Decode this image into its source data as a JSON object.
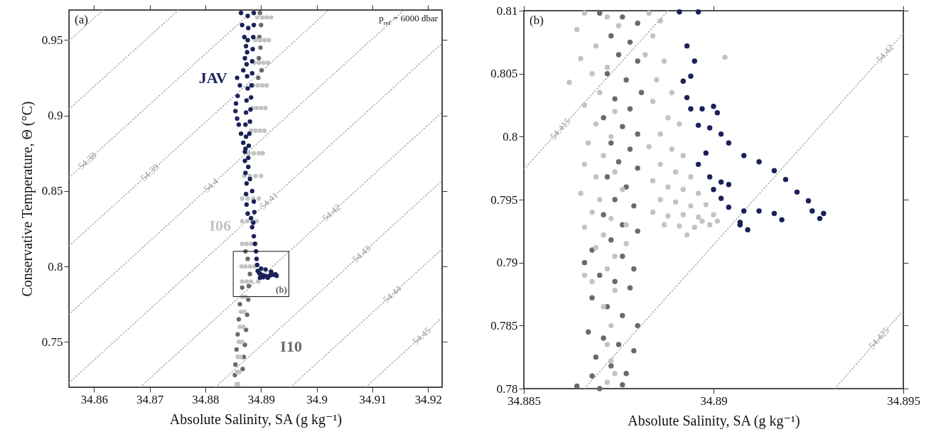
{
  "chart_data": [
    {
      "type": "scatter",
      "xlabel": "Absolute Salinity, SA (g kg⁻¹)",
      "ylabel": "Conservative Temperature, Θ (°C)",
      "xlim": [
        34.8555,
        34.9225
      ],
      "ylim": [
        0.72,
        0.97
      ],
      "xticks": [
        34.86,
        34.87,
        34.88,
        34.89,
        34.9,
        34.91,
        34.92
      ],
      "yticks": [
        0.75,
        0.8,
        0.85,
        0.9,
        0.95
      ],
      "annotations": [
        "(a)",
        "p$_{ref}$ = 6000 dbar",
        "(b)"
      ],
      "series": [
        {
          "type": "line",
          "line_style": "dotted",
          "color": "#9a9a9a",
          "x": [
            34.8555,
            34.8617
          ],
          "values": [
            0.9496,
            0.97
          ]
        },
        {
          "type": "line",
          "line_style": "dotted",
          "color": "#9a9a9a",
          "x": [
            34.8555,
            34.8752
          ],
          "values": [
            0.9042,
            0.97
          ]
        },
        {
          "type": "line",
          "name": "54.38",
          "line_style": "dotted",
          "color": "#9a9a9a",
          "x": [
            34.8555,
            34.8887
          ],
          "values": [
            0.8588,
            0.97
          ]
        },
        {
          "type": "line",
          "name": "54.39",
          "line_style": "dotted",
          "color": "#9a9a9a",
          "x": [
            34.8555,
            34.9022
          ],
          "values": [
            0.8135,
            0.97
          ]
        },
        {
          "type": "line",
          "name": "54.4",
          "line_style": "dotted",
          "color": "#9a9a9a",
          "x": [
            34.8555,
            34.9157
          ],
          "values": [
            0.7681,
            0.97
          ]
        },
        {
          "type": "line",
          "name": "54.41",
          "line_style": "dotted",
          "color": "#9a9a9a",
          "x": [
            34.8555,
            34.9225
          ],
          "values": [
            0.7228,
            0.9479
          ]
        },
        {
          "type": "line",
          "name": "54.42",
          "line_style": "dotted",
          "color": "#9a9a9a",
          "x": [
            34.8683,
            34.9225
          ],
          "values": [
            0.72,
            0.9022
          ]
        },
        {
          "type": "line",
          "name": "54.43",
          "line_style": "dotted",
          "color": "#9a9a9a",
          "x": [
            34.8818,
            34.9225
          ],
          "values": [
            0.72,
            0.8568
          ]
        },
        {
          "type": "line",
          "name": "54.44",
          "line_style": "dotted",
          "color": "#9a9a9a",
          "x": [
            34.8953,
            34.9225
          ],
          "values": [
            0.72,
            0.8115
          ]
        },
        {
          "type": "line",
          "name": "54.45",
          "line_style": "dotted",
          "color": "#9a9a9a",
          "x": [
            34.9088,
            34.9225
          ],
          "values": [
            0.72,
            0.7661
          ]
        },
        {
          "name": "I10",
          "marker": "circle",
          "color": "#6a6a6a",
          "x": [
            34.8871,
            34.8898,
            34.89,
            34.8897,
            34.8899,
            34.8896,
            34.8901,
            34.8895,
            34.8866,
            34.8862,
            34.886,
            34.8858,
            34.8856,
            34.8854,
            34.8853,
            34.8878,
            34.8877,
            34.8875,
            34.8873,
            34.8869,
            34.8867,
            34.887,
            34.8876,
            34.888,
            34.8872
          ],
          "values": [
            0.748,
            0.968,
            0.96,
            0.952,
            0.945,
            0.938,
            0.93,
            0.925,
            0.786,
            0.775,
            0.765,
            0.755,
            0.745,
            0.735,
            0.728,
            0.787,
            0.778,
            0.768,
            0.758,
            0.74,
            0.732,
            null,
            0.805,
            0.795,
            0.81
          ]
        },
        {
          "name": "I06",
          "marker": "circle",
          "color": "#c3c3c3",
          "x": [
            34.8866,
            34.8893,
            34.8902,
            34.891,
            34.8918,
            34.889,
            34.8898,
            34.8906,
            34.8914,
            34.8888,
            34.8896,
            34.8904,
            34.8912,
            34.8886,
            34.8894,
            34.8902,
            34.891,
            34.8884,
            34.8892,
            34.89,
            34.8908,
            34.8882,
            34.889,
            34.8898,
            34.8906,
            34.8878,
            34.8887,
            34.8896,
            34.8903,
            34.887,
            34.888,
            34.889,
            34.89,
            34.8866,
            34.8876,
            34.8886,
            34.8896,
            34.8875,
            34.8884,
            34.8892,
            34.8866,
            34.8874,
            34.8882,
            34.889,
            34.8865,
            34.8872,
            34.888,
            34.8888,
            34.8866,
            34.8874,
            34.8882,
            34.8895,
            34.8866,
            34.8872,
            34.8864,
            34.887,
            34.8862,
            34.8868,
            34.886,
            34.8866,
            34.8858,
            34.8863,
            34.8857,
            34.8861,
            34.8856,
            34.8859
          ],
          "values": [
            0.83,
            0.965,
            0.965,
            0.965,
            0.965,
            0.95,
            0.95,
            0.95,
            0.95,
            0.935,
            0.935,
            0.935,
            0.935,
            0.92,
            0.92,
            0.92,
            0.92,
            0.905,
            0.905,
            0.905,
            0.905,
            0.89,
            0.89,
            0.89,
            0.89,
            0.875,
            0.875,
            0.875,
            0.875,
            0.86,
            0.86,
            0.86,
            0.86,
            0.845,
            0.845,
            0.845,
            0.845,
            0.83,
            0.83,
            0.83,
            0.815,
            0.815,
            0.815,
            0.815,
            0.8,
            0.8,
            0.8,
            0.8,
            0.79,
            0.79,
            0.79,
            0.79,
            0.78,
            0.78,
            0.77,
            0.77,
            0.76,
            0.76,
            0.75,
            0.75,
            0.74,
            0.74,
            0.73,
            0.73,
            0.722,
            0.722
          ]
        },
        {
          "name": "JAV",
          "marker": "circle",
          "color": "#1a2259",
          "x": [
            34.8857,
            34.8864,
            34.8866,
            34.887,
            34.8873,
            34.8871,
            34.8868,
            34.8862,
            34.8858,
            34.8855,
            34.8854,
            34.8857,
            34.886,
            34.8864,
            34.8868,
            34.8871,
            34.8876,
            34.8877,
            34.8876,
            34.8875,
            34.8874,
            34.8875,
            34.8876,
            34.8874,
            34.8873,
            34.8872,
            34.8873,
            34.8872,
            34.8871,
            34.8872,
            34.8874,
            34.8873,
            34.8874,
            34.8876,
            34.8887,
            34.8887,
            34.8886,
            34.8885,
            34.8884,
            34.8884,
            34.8883,
            34.8882,
            34.8881,
            34.888,
            34.8879,
            34.8878,
            34.8877,
            34.8877,
            34.888,
            34.8884,
            34.8887,
            34.8888,
            34.8886,
            34.8882,
            34.8884,
            34.8887,
            34.8889,
            34.8891,
            34.8892,
            34.8893,
            34.8894,
            34.8897,
            34.8901,
            34.8905,
            34.891,
            34.8916,
            34.8922,
            34.8928,
            34.8912,
            34.8904,
            34.8898,
            34.89,
            34.8908,
            34.8918,
            34.8926
          ],
          "values": [
            0.925,
            0.968,
            0.96,
            0.952,
            0.946,
            0.938,
            0.93,
            0.92,
            0.913,
            0.908,
            0.903,
            0.898,
            0.894,
            0.888,
            0.882,
            0.876,
            0.966,
            0.958,
            0.95,
            0.942,
            0.934,
            0.926,
            0.918,
            0.91,
            0.902,
            0.894,
            0.886,
            0.878,
            0.87,
            0.862,
            0.855,
            0.848,
            0.841,
            0.835,
            0.968,
            0.96,
            0.952,
            0.944,
            0.936,
            0.928,
            0.92,
            0.912,
            0.904,
            0.896,
            0.888,
            0.88,
            0.872,
            0.866,
            0.858,
            0.85,
            0.843,
            0.836,
            0.829,
            0.832,
            0.826,
            0.82,
            0.815,
            0.81,
            0.805,
            0.801,
            0.797,
            0.7955,
            0.7945,
            0.794,
            0.7935,
            0.794,
            0.7945,
            0.7938,
            0.7925,
            0.7928,
            0.7925,
            0.7985,
            0.798,
            0.7965,
            0.7948
          ]
        }
      ]
    },
    {
      "type": "scatter",
      "xlabel": "Absolute Salinity, SA (g kg⁻¹)",
      "xlim": [
        34.885,
        34.895
      ],
      "ylim": [
        0.78,
        0.81
      ],
      "xticks": [
        34.885,
        34.89,
        34.895
      ],
      "yticks": [
        0.78,
        0.785,
        0.79,
        0.795,
        0.8,
        0.805,
        0.81
      ],
      "annotations": [
        "(b)"
      ],
      "series": [
        {
          "type": "line",
          "name": "54.415",
          "line_style": "dotted",
          "color": "#9a9a9a",
          "x": [
            34.885,
            34.8888
          ],
          "values": [
            0.7974,
            0.81
          ]
        },
        {
          "type": "line",
          "name": "54.42",
          "line_style": "dotted",
          "color": "#9a9a9a",
          "x": [
            34.8866,
            34.895
          ],
          "values": [
            0.78,
            0.8082
          ]
        },
        {
          "type": "line",
          "name": "54.425",
          "line_style": "dotted",
          "color": "#9a9a9a",
          "x": [
            34.8932,
            34.895
          ],
          "values": [
            0.78,
            0.7862
          ]
        },
        {
          "marker": "circle",
          "color": "#6a6a6a",
          "x": [
            34.887,
            34.8876,
            34.888,
            34.8873,
            34.8878,
            34.8875,
            34.888,
            34.8872,
            34.8877,
            34.8881,
            34.8874,
            34.8878,
            34.8871,
            34.8876,
            34.888,
            34.8873,
            34.8878,
            34.8875,
            34.888,
            34.8872,
            34.8877,
            34.8874,
            34.8879,
            34.8871,
            34.8876,
            34.888,
            34.8873,
            34.8868,
            34.8876,
            34.8879,
            34.8866,
            34.887,
            34.8874,
            34.8878,
            34.8868,
            34.8872,
            34.8876,
            34.888,
            34.8867,
            34.8871,
            34.8875,
            34.8879,
            34.8869,
            34.8873,
            34.8877,
            34.8868,
            34.8872,
            34.8876,
            34.8864,
            34.887
          ],
          "values": [
            0.8098,
            0.8095,
            0.809,
            0.808,
            0.8075,
            0.8065,
            0.806,
            0.805,
            0.8045,
            0.8035,
            0.803,
            0.8022,
            0.8015,
            0.8008,
            0.8002,
            0.7995,
            0.799,
            0.798,
            0.7975,
            0.7968,
            0.796,
            0.795,
            0.7945,
            0.7938,
            0.793,
            0.7925,
            0.7918,
            0.791,
            0.7905,
            0.7895,
            0.79,
            0.789,
            0.7885,
            0.788,
            0.7872,
            0.7865,
            0.7858,
            0.785,
            0.7845,
            0.784,
            0.7835,
            0.783,
            0.7825,
            0.7818,
            0.7812,
            0.781,
            null,
            0.7803,
            0.7802,
            0.78
          ]
        },
        {
          "marker": "circle",
          "color": "#c3c3c3",
          "x": [
            34.8864,
            34.8866,
            34.8869,
            34.8872,
            34.8875,
            34.8865,
            34.8868,
            34.8872,
            34.887,
            34.8866,
            34.8874,
            34.8869,
            34.8867,
            34.8873,
            34.8871,
            34.8866,
            34.8869,
            34.8874,
            34.8865,
            34.887,
            34.8876,
            34.8868,
            34.8873,
            34.8866,
            34.8871,
            34.8877,
            34.8869,
            34.8874,
            34.8872,
            34.8868,
            34.8874,
            34.8871,
            34.8873,
            34.8872,
            34.8873,
            34.8872,
            34.8874,
            34.8866,
            34.8877,
            34.8862,
            34.8883,
            34.8886,
            34.8884,
            34.8882,
            34.8887,
            34.8885,
            34.8889,
            34.8884,
            34.8888,
            34.8891,
            34.8886,
            34.8883,
            34.8889,
            34.8892,
            34.8886,
            34.889,
            34.8894,
            34.8884,
            34.8888,
            34.8892,
            34.8896,
            34.8886,
            34.889,
            34.8894,
            34.8898,
            34.8884,
            34.8888,
            34.8892,
            34.8896,
            34.89,
            34.8887,
            34.8891,
            34.8895,
            34.8899,
            34.8893,
            34.8897,
            34.8901,
            34.8903
          ],
          "values": [
            0.8085,
            0.8098,
            0.8072,
            0.8095,
            0.8088,
            0.8062,
            0.805,
            0.8055,
            0.8035,
            0.8025,
            0.802,
            0.801,
            0.7995,
            0.8,
            0.7985,
            0.7978,
            0.7968,
            0.7972,
            0.7955,
            0.795,
            0.7958,
            0.794,
            0.7935,
            0.7928,
            0.7922,
            0.793,
            0.7912,
            0.7905,
            0.7895,
            0.7885,
            0.7878,
            0.7865,
            0.785,
            0.7835,
            0.7822,
            0.7805,
            0.7812,
            0.789,
            0.7915,
            0.8043,
            0.8098,
            0.8092,
            0.808,
            0.8065,
            0.806,
            0.8045,
            0.8035,
            0.8028,
            0.8015,
            0.801,
            0.8002,
            0.7992,
            0.799,
            0.7985,
            0.7978,
            0.7972,
            0.7968,
            0.7965,
            0.796,
            0.7958,
            0.7955,
            0.795,
            0.7948,
            0.7945,
            0.7946,
            0.794,
            0.7937,
            0.7938,
            0.7936,
            0.7938,
            0.793,
            0.7929,
            0.7928,
            0.793,
            0.7922,
            0.7933,
            0.7933,
            0.8063
          ]
        },
        {
          "marker": "circle",
          "color": "#1a2259",
          "x": [
            34.8891,
            34.8896,
            34.8893,
            34.8895,
            34.8894,
            34.8892,
            34.8893,
            34.8894,
            34.8897,
            34.89,
            34.8901,
            34.8896,
            34.8899,
            34.8902,
            34.8904,
            34.8908,
            34.8912,
            34.8916,
            34.8919,
            34.8922,
            34.8925,
            34.8926,
            34.8929,
            34.8928,
            34.8898,
            34.8896,
            34.8899,
            34.89,
            34.8902,
            34.8904,
            34.8908,
            34.8912,
            34.8916,
            34.8918,
            34.8907,
            34.8907,
            34.8909,
            34.8902,
            34.8904
          ],
          "values": [
            0.8099,
            0.8099,
            0.8072,
            0.806,
            0.8048,
            0.8044,
            0.8031,
            0.8022,
            0.8022,
            0.8024,
            0.8019,
            0.8009,
            0.8007,
            0.8002,
            0.7995,
            0.7985,
            0.798,
            0.7973,
            0.7966,
            0.7956,
            0.7949,
            0.7941,
            0.7939,
            0.7935,
            0.7987,
            0.7978,
            0.7968,
            0.7958,
            0.7951,
            0.7944,
            0.7941,
            0.7941,
            0.7939,
            0.7934,
            0.7932,
            0.793,
            0.7926,
            0.7964,
            0.7962
          ]
        }
      ]
    }
  ]
}
